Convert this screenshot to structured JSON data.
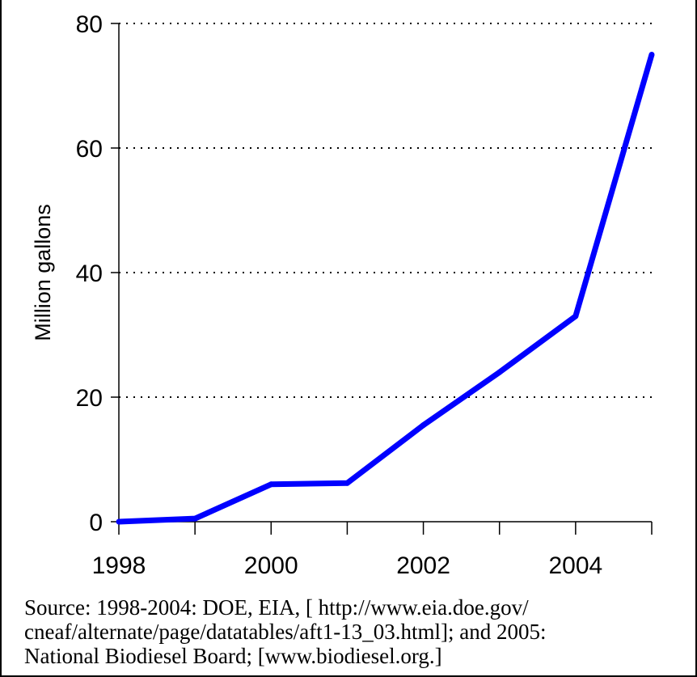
{
  "chart_data": {
    "type": "line",
    "title": "",
    "xlabel": "",
    "ylabel": "Million gallons",
    "x": [
      1998,
      1999,
      2000,
      2001,
      2002,
      2003,
      2004,
      2005
    ],
    "series": [
      {
        "values": [
          0,
          0.5,
          6,
          6.2,
          15.5,
          24,
          33,
          75
        ],
        "color": "#0000ff"
      }
    ],
    "xlim": [
      1998,
      2005
    ],
    "ylim": [
      0,
      80
    ],
    "xtick_labels": [
      "1998",
      "2000",
      "2002",
      "2004"
    ],
    "ytick_labels": [
      "0",
      "20",
      "40",
      "60",
      "80"
    ],
    "grid": "horizontal dotted"
  },
  "source_note": {
    "line1": "Source: 1998-2004: DOE, EIA, [ http://www.eia.doe.gov/",
    "line2": "cneaf/alternate/page/datatables/aft1-13_03.html]; and 2005:",
    "line3": "National Biodiesel Board; [www.biodiesel.org.]"
  },
  "colors": {
    "line": "#0000ff",
    "axis": "#000000",
    "grid": "#000000"
  }
}
